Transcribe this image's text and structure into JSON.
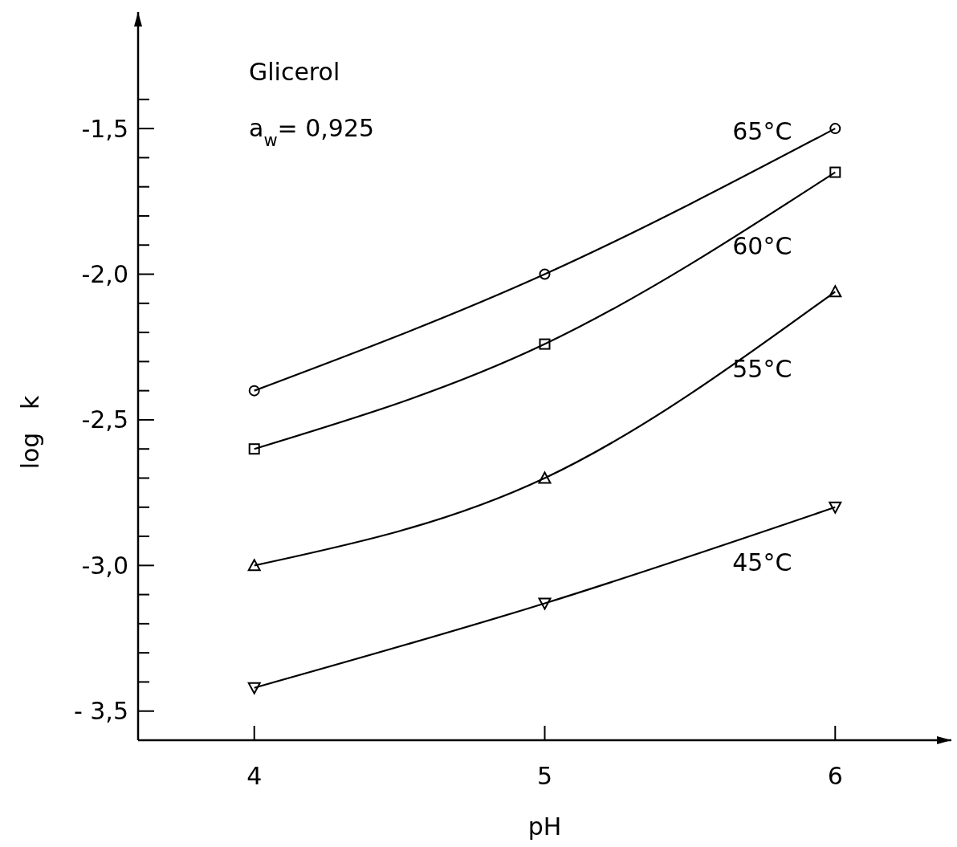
{
  "chart_data": {
    "type": "line",
    "xlabel": "pH",
    "ylabel": "log   k",
    "annotations": [
      "Glicerol",
      "a$_{w}$= 0,925"
    ],
    "x": [
      4,
      5,
      6
    ],
    "series": [
      {
        "name": "65°C",
        "color": "#000000",
        "marker": "circle",
        "values": [
          -2.4,
          -2.0,
          -1.5
        ]
      },
      {
        "name": "60°C",
        "color": "#000000",
        "marker": "square",
        "values": [
          -2.6,
          -2.24,
          -1.65
        ]
      },
      {
        "name": "55°C",
        "color": "#000000",
        "marker": "triangle",
        "values": [
          -3.0,
          -2.7,
          -2.06
        ]
      },
      {
        "name": "45°C",
        "color": "#000000",
        "marker": "triangle-down",
        "values": [
          -3.42,
          -3.13,
          -2.8
        ]
      }
    ],
    "xlim": [
      3.6,
      6.4
    ],
    "xticks": [
      4,
      5,
      6
    ],
    "ylim": [
      -3.6,
      -1.1
    ],
    "yticks": [
      {
        "value": -1.4,
        "label": null
      },
      {
        "value": -1.5,
        "label": "-1,5"
      },
      {
        "value": -1.6,
        "label": null
      },
      {
        "value": -1.7,
        "label": null
      },
      {
        "value": -1.8,
        "label": null
      },
      {
        "value": -1.9,
        "label": null
      },
      {
        "value": -2.0,
        "label": "-2,0"
      },
      {
        "value": -2.1,
        "label": null
      },
      {
        "value": -2.2,
        "label": null
      },
      {
        "value": -2.3,
        "label": null
      },
      {
        "value": -2.4,
        "label": null
      },
      {
        "value": -2.5,
        "label": "-2,5"
      },
      {
        "value": -2.6,
        "label": null
      },
      {
        "value": -2.7,
        "label": null
      },
      {
        "value": -2.8,
        "label": null
      },
      {
        "value": -2.9,
        "label": null
      },
      {
        "value": -3.0,
        "label": "-3,0"
      },
      {
        "value": -3.1,
        "label": null
      },
      {
        "value": -3.2,
        "label": null
      },
      {
        "value": -3.3,
        "label": null
      },
      {
        "value": -3.4,
        "label": null
      },
      {
        "value": -3.5,
        "label": "- 3,5"
      }
    ],
    "grid": false,
    "line_style": "solid"
  }
}
